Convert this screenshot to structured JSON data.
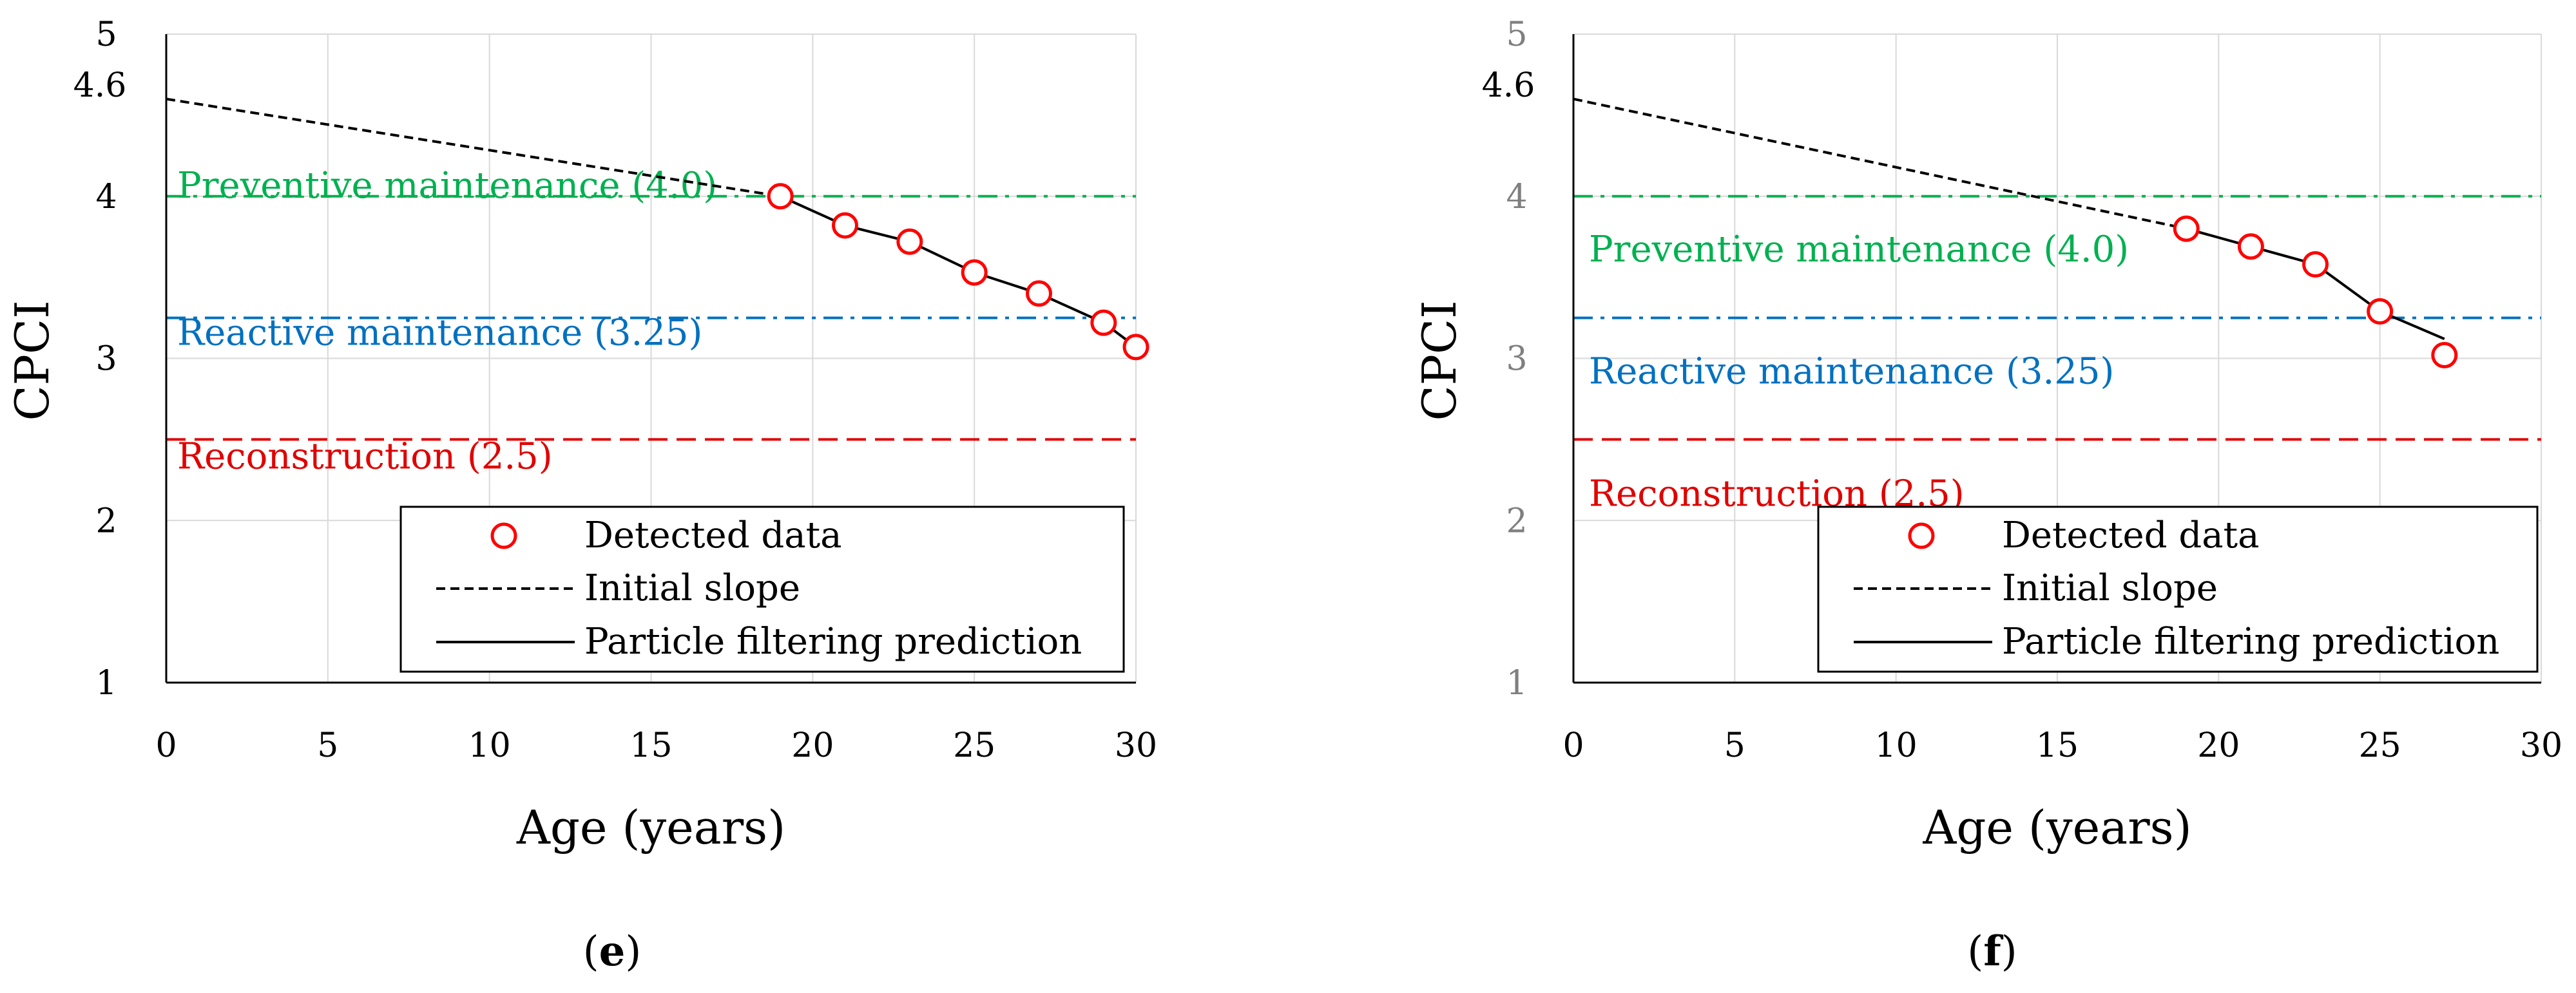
{
  "chart_data": [
    {
      "type": "scatter",
      "panel_label": "e",
      "xlabel": "Age (years)",
      "ylabel": "CPCI",
      "xlim": [
        0,
        30
      ],
      "ylim": [
        1,
        5
      ],
      "x_ticks": [
        "0",
        "5",
        "10",
        "15",
        "20",
        "25",
        "30"
      ],
      "y_ticks": [
        "1",
        "2",
        "3",
        "4",
        "5"
      ],
      "extra_y_tick": "4.6",
      "grid": true,
      "legend_position": "bottom-right",
      "thresholds": [
        {
          "label": "Preventive  maintenance  (4.0)",
          "value": 4.0,
          "color": "#00b050",
          "style": "dash-dot"
        },
        {
          "label": "Reactive  maintenance  (3.25)",
          "value": 3.25,
          "color": "#0070c0",
          "style": "dash-dot"
        },
        {
          "label": "Reconstruction  (2.5)",
          "value": 2.5,
          "color": "#e00000",
          "style": "dashed"
        }
      ],
      "series": [
        {
          "name": "Detected data",
          "style": "marker",
          "x": [
            19,
            21,
            23,
            25,
            27,
            29,
            30
          ],
          "y": [
            4.0,
            3.82,
            3.72,
            3.53,
            3.4,
            3.22,
            3.07
          ]
        },
        {
          "name": "Initial slope",
          "style": "dashed",
          "x": [
            0,
            19
          ],
          "y": [
            4.6,
            4.0
          ]
        },
        {
          "name": "Particle filtering prediction",
          "style": "solid",
          "x": [
            19,
            21,
            23,
            25,
            27,
            29,
            30
          ],
          "y": [
            4.0,
            3.82,
            3.72,
            3.53,
            3.4,
            3.22,
            3.07
          ]
        }
      ]
    },
    {
      "type": "scatter",
      "panel_label": "f",
      "xlabel": "Age (years)",
      "ylabel": "CPCI",
      "xlim": [
        0,
        30
      ],
      "ylim": [
        1,
        5
      ],
      "x_ticks": [
        "0",
        "5",
        "10",
        "15",
        "20",
        "25",
        "30"
      ],
      "y_ticks": [
        "1",
        "2",
        "3",
        "4",
        "5"
      ],
      "extra_y_tick": "4.6",
      "grid": true,
      "legend_position": "bottom-right",
      "thresholds": [
        {
          "label": "Preventive maintenance (4.0)",
          "value": 4.0,
          "color": "#00b050",
          "style": "dash-dot"
        },
        {
          "label": "Reactive maintenance (3.25)",
          "value": 3.25,
          "color": "#0070c0",
          "style": "dash-dot"
        },
        {
          "label": "Reconstruction (2.5)",
          "value": 2.5,
          "color": "#e00000",
          "style": "dashed"
        }
      ],
      "series": [
        {
          "name": "Detected data",
          "style": "marker",
          "x": [
            19,
            21,
            23,
            25,
            27
          ],
          "y": [
            3.8,
            3.69,
            3.58,
            3.29,
            3.02
          ]
        },
        {
          "name": "Initial slope",
          "style": "dashed",
          "x": [
            0,
            19
          ],
          "y": [
            4.6,
            3.8
          ]
        },
        {
          "name": "Particle filtering prediction",
          "style": "solid",
          "x": [
            19,
            21,
            23,
            25,
            27
          ],
          "y": [
            3.8,
            3.69,
            3.58,
            3.29,
            3.12
          ]
        }
      ]
    }
  ]
}
